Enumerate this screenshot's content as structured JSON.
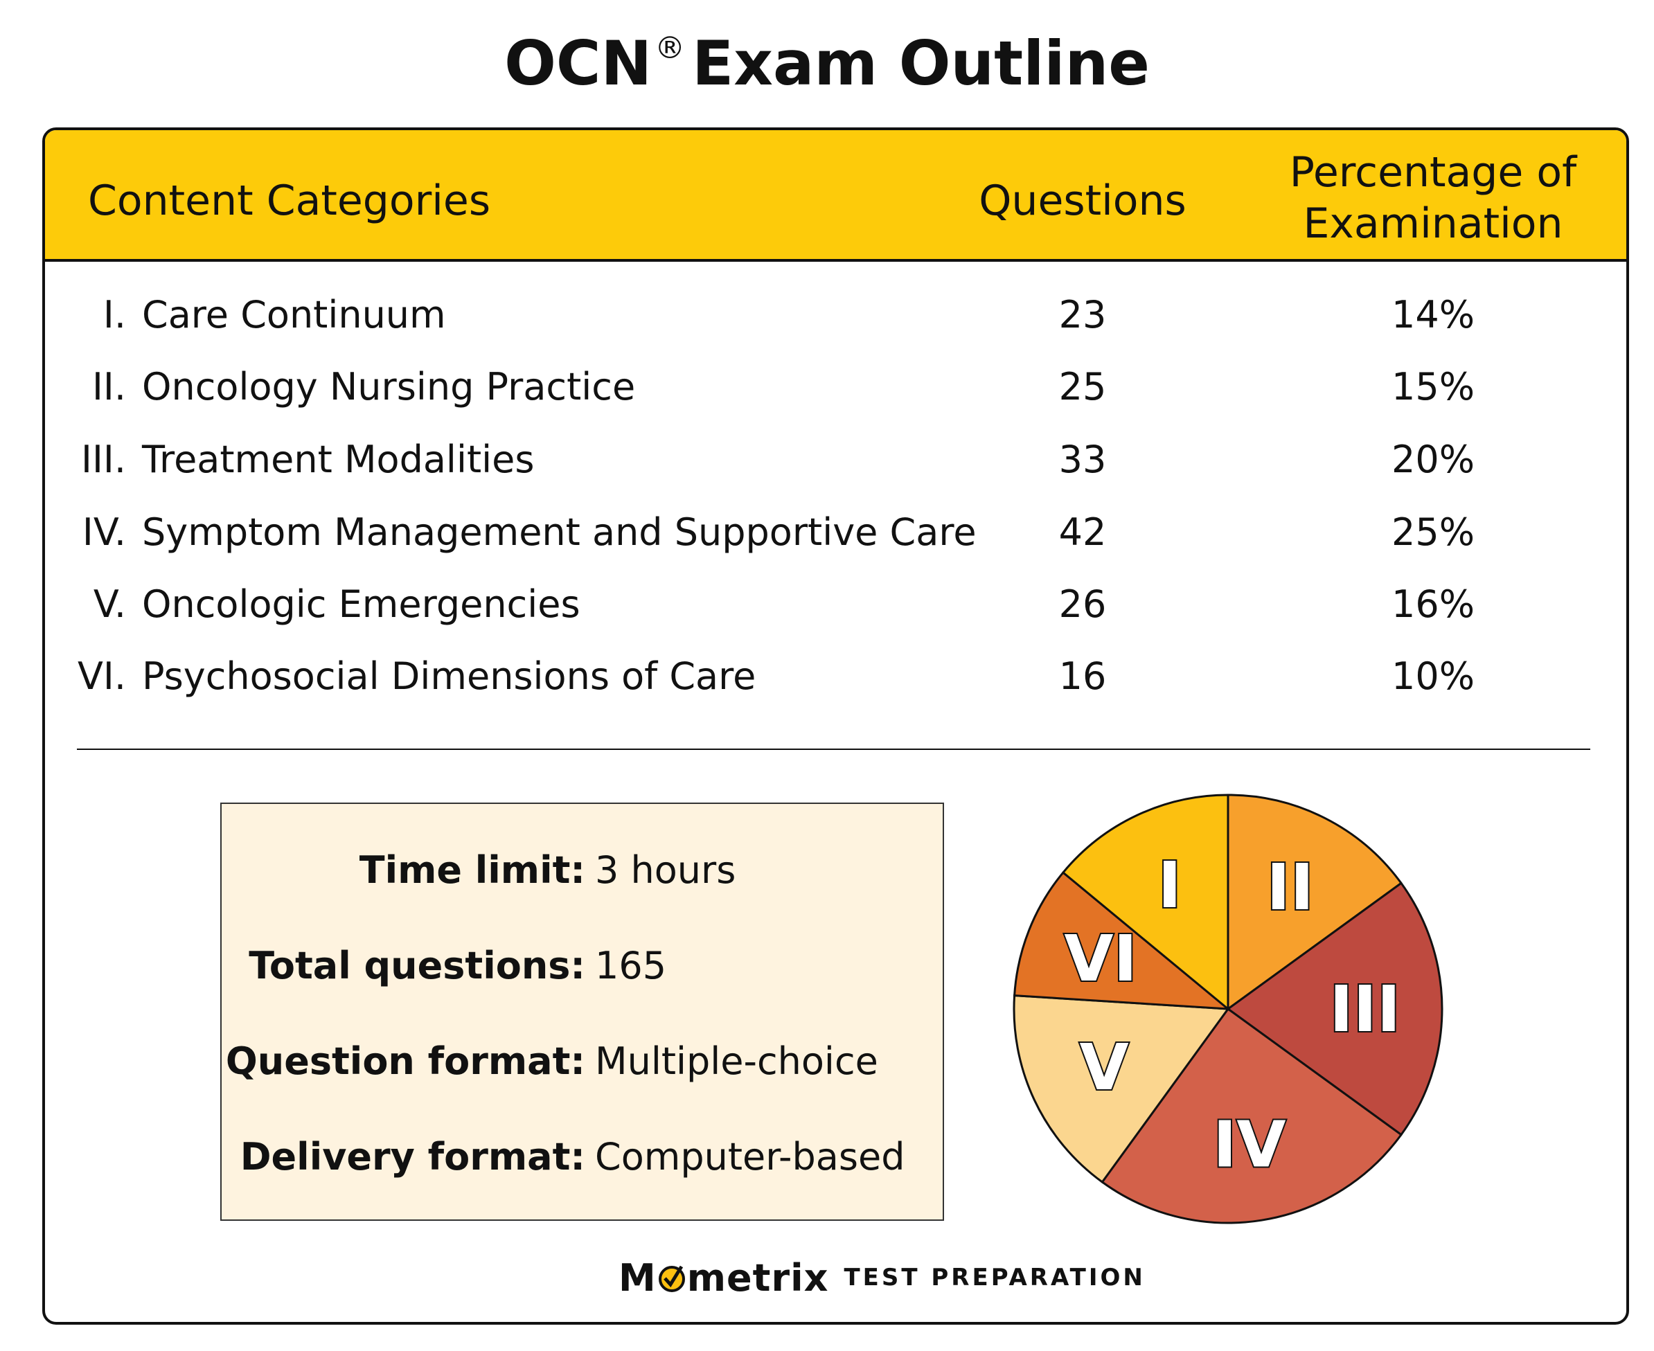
{
  "title": {
    "main": "OCN",
    "reg": "®",
    "rest": "Exam Outline"
  },
  "table": {
    "headers": {
      "category": "Content Categories",
      "questions": "Questions",
      "percentage_line1": "Percentage of",
      "percentage_line2": "Examination"
    },
    "rows": [
      {
        "num": "I.",
        "category": "Care Continuum",
        "questions": "23",
        "percentage": "14%"
      },
      {
        "num": "II.",
        "category": "Oncology Nursing Practice",
        "questions": "25",
        "percentage": "15%"
      },
      {
        "num": "III.",
        "category": "Treatment Modalities",
        "questions": "33",
        "percentage": "20%"
      },
      {
        "num": "IV.",
        "category": "Symptom Management and Supportive Care",
        "questions": "42",
        "percentage": "25%"
      },
      {
        "num": "V.",
        "category": "Oncologic Emergencies",
        "questions": "26",
        "percentage": "16%"
      },
      {
        "num": "VI.",
        "category": "Psychosocial Dimensions of Care",
        "questions": "16",
        "percentage": "10%"
      }
    ]
  },
  "info": [
    {
      "label": "Time limit:",
      "value": "3 hours"
    },
    {
      "label": "Total questions:",
      "value": "165"
    },
    {
      "label": "Question format:",
      "value": "Multiple-choice"
    },
    {
      "label": "Delivery format:",
      "value": "Computer-based"
    }
  ],
  "chart_data": {
    "type": "pie",
    "title": "",
    "start": "top, clockwise from II",
    "slices": [
      {
        "label": "II",
        "value": 15,
        "color": "#F7A02C"
      },
      {
        "label": "III",
        "value": 20,
        "color": "#BE4A3F"
      },
      {
        "label": "IV",
        "value": 25,
        "color": "#D3614A"
      },
      {
        "label": "V",
        "value": 16,
        "color": "#FBD68F"
      },
      {
        "label": "VI",
        "value": 10,
        "color": "#E37325"
      },
      {
        "label": "I",
        "value": 14,
        "color": "#FCC010"
      }
    ]
  },
  "logo": {
    "brand": "Mometrix",
    "tagline": "TEST  PREPARATION"
  },
  "colors": {
    "header": "#FDCB0A",
    "info_bg": "#FEF3DF"
  }
}
